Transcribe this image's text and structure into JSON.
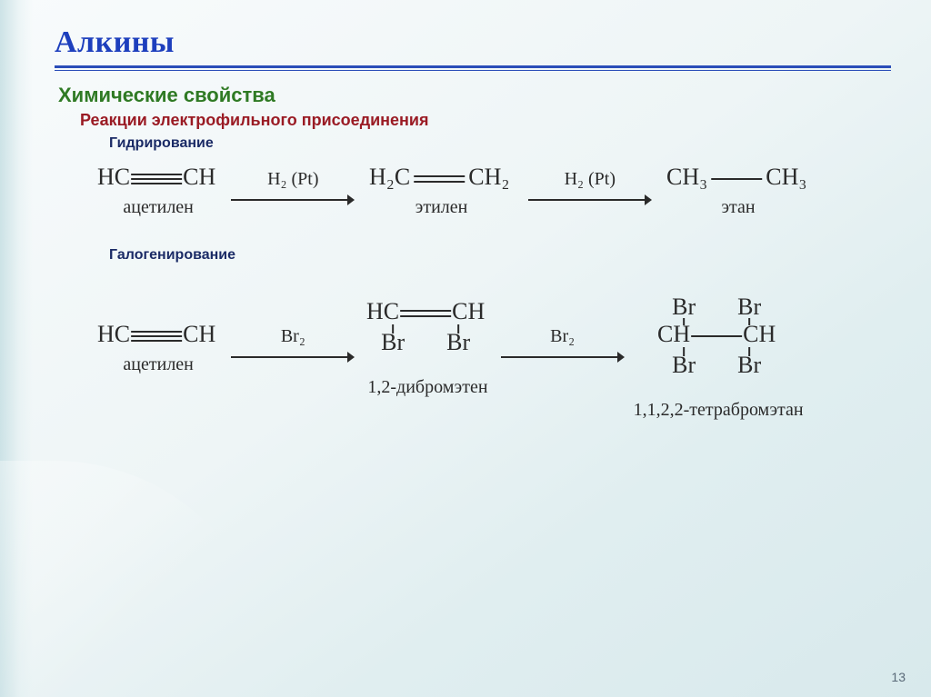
{
  "colors": {
    "title_text": "#1d3fbd",
    "rule": "#2a4db8",
    "subtitle": "#2f7a24",
    "section": "#9a1b24",
    "subheader": "#1b2b66",
    "chem_text": "#2a2a2a",
    "label_text": "#2a2a2a",
    "arrow": "#2a2a2a",
    "page_num": "#5a6a78"
  },
  "fonts": {
    "title_size": 34,
    "subtitle_size": 22,
    "section_size": 18,
    "subheader_size": 16,
    "chem_size": 26,
    "condition_size": 20,
    "label_size": 20,
    "page_num_size": 14
  },
  "title": "Алкины",
  "subtitle": "Химические свойства",
  "section_label": "Реакции электрофильного присоединения",
  "subheader_hydro": "Гидрирование",
  "subheader_halo": "Галогенирование",
  "page_number": "13",
  "arrow": {
    "length": 140,
    "stroke_width": 2
  },
  "hydrogenation": {
    "cond1": "H₂ (Pt)",
    "cond2": "H₂ (Pt)",
    "m1": {
      "left": "HC",
      "right": "CH",
      "bond": "triple",
      "label": "ацетилен"
    },
    "m2": {
      "left": "H₂C",
      "right": "CH₂",
      "bond": "double",
      "label": "этилен"
    },
    "m3": {
      "left": "CH₃",
      "right": "CH₃",
      "bond": "single",
      "label": "этан"
    }
  },
  "halogenation": {
    "cond1": "Br₂",
    "cond2": "Br₂",
    "m1": {
      "left": "HC",
      "right": "CH",
      "bond": "triple",
      "label": "ацетилен"
    },
    "m2": {
      "left": "HC",
      "right": "CH",
      "bond": "double",
      "sub_left": "Br",
      "sub_right": "Br",
      "label": "1,2-дибромэтен"
    },
    "m3": {
      "left": "CH",
      "right": "CH",
      "bond": "single",
      "sup_left": "Br",
      "sup_right": "Br",
      "sub_left": "Br",
      "sub_right": "Br",
      "label": "1,1,2,2-тетрабромэтан"
    }
  }
}
